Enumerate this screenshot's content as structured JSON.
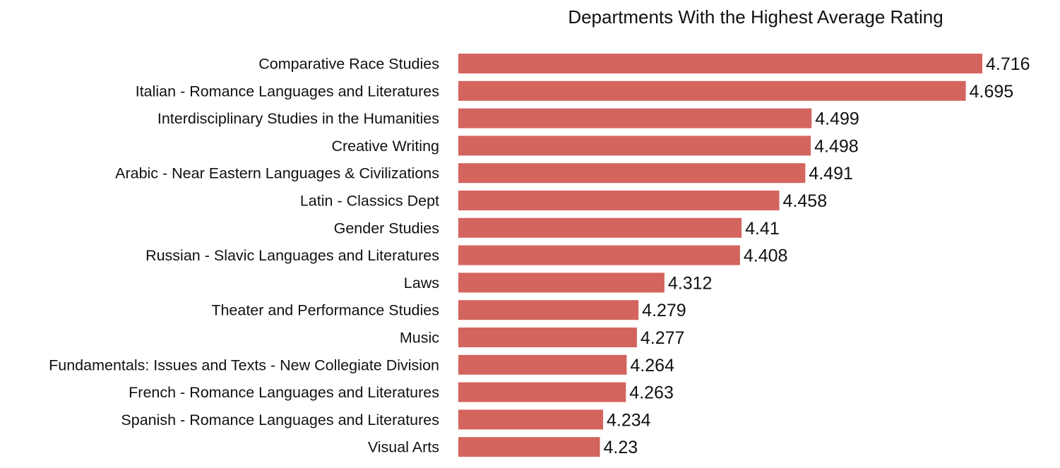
{
  "chart_data": {
    "type": "bar",
    "orientation": "horizontal",
    "title": "Departments With the Highest Average Rating",
    "categories": [
      "Comparative Race Studies",
      "Italian - Romance Languages and Literatures",
      "Interdisciplinary Studies in the Humanities",
      "Creative Writing",
      "Arabic - Near Eastern Languages & Civilizations",
      "Latin - Classics  Dept",
      "Gender Studies",
      "Russian - Slavic Languages and Literatures",
      "Laws",
      "Theater and Performance Studies",
      "Music",
      "Fundamentals: Issues and Texts - New Collegiate Division",
      "French - Romance Languages and Literatures",
      "Spanish - Romance Languages and Literatures",
      "Visual Arts"
    ],
    "values": [
      4.716,
      4.695,
      4.499,
      4.498,
      4.491,
      4.458,
      4.41,
      4.408,
      4.312,
      4.279,
      4.277,
      4.264,
      4.263,
      4.234,
      4.23
    ],
    "value_labels": [
      "4.716",
      "4.695",
      "4.499",
      "4.498",
      "4.491",
      "4.458",
      "4.41",
      "4.408",
      "4.312",
      "4.279",
      "4.277",
      "4.264",
      "4.263",
      "4.234",
      "4.23"
    ],
    "xlim": [
      4.05,
      4.716
    ],
    "bar_color": "#d3655e",
    "grid": false,
    "legend": "none"
  }
}
